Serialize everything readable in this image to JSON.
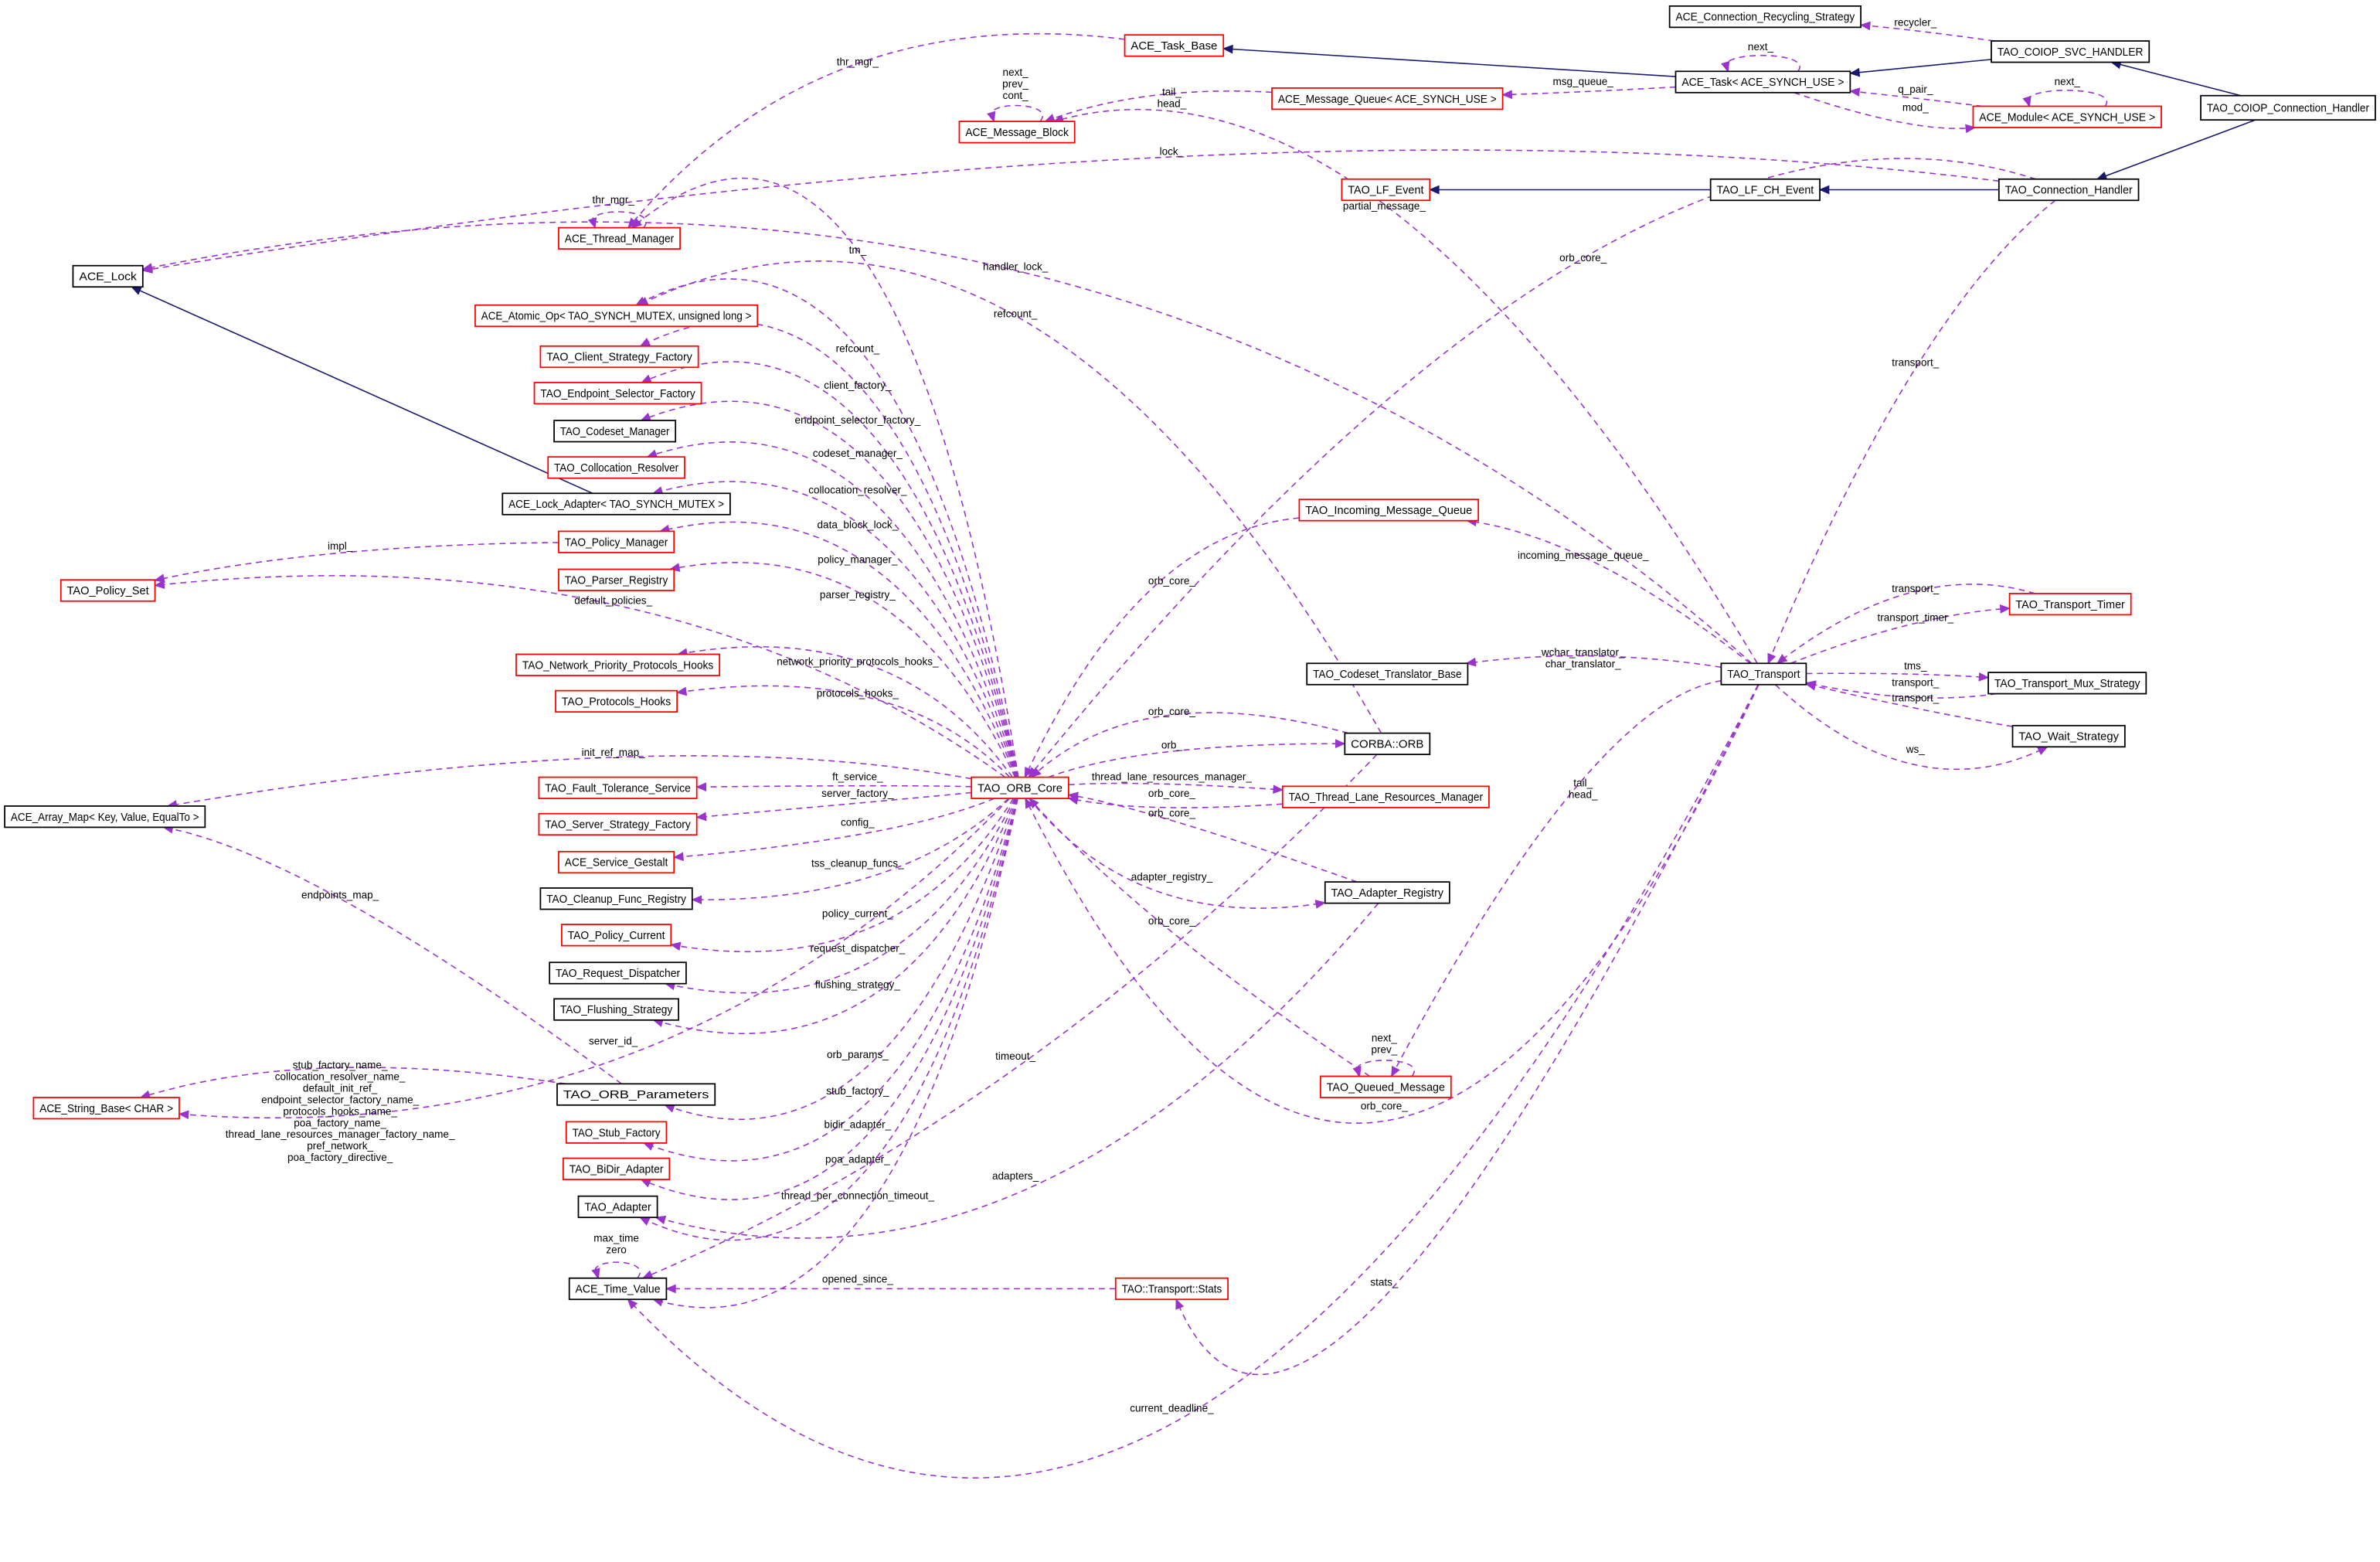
{
  "colors": {
    "inheritance": "#191970",
    "usage": "#9a32cd",
    "red_border": "#ff0000",
    "black_border": "#000000",
    "focus_fill": "#bfbfbf"
  },
  "nodes": [
    {
      "id": "recycling",
      "label": "ACE_Connection_Recycling_Strategy",
      "border": "black"
    },
    {
      "id": "svc",
      "label": "TAO_COIOP_SVC_HANDLER",
      "border": "black"
    },
    {
      "id": "coiop",
      "label": "TAO_COIOP_Connection_Handler",
      "border": "focus"
    },
    {
      "id": "taskbase",
      "label": "ACE_Task_Base",
      "border": "red"
    },
    {
      "id": "task",
      "label": "ACE_Task< ACE_SYNCH_USE >",
      "border": "black"
    },
    {
      "id": "msgqueue",
      "label": "ACE_Message_Queue< ACE_SYNCH_USE >",
      "border": "red"
    },
    {
      "id": "module",
      "label": "ACE_Module< ACE_SYNCH_USE >",
      "border": "red"
    },
    {
      "id": "msgblock",
      "label": "ACE_Message_Block",
      "border": "red"
    },
    {
      "id": "lfevent",
      "label": "TAO_LF_Event",
      "border": "red"
    },
    {
      "id": "lfch",
      "label": "TAO_LF_CH_Event",
      "border": "black"
    },
    {
      "id": "connh",
      "label": "TAO_Connection_Handler",
      "border": "black"
    },
    {
      "id": "thrmgr",
      "label": "ACE_Thread_Manager",
      "border": "red"
    },
    {
      "id": "lock",
      "label": "ACE_Lock",
      "border": "black"
    },
    {
      "id": "atomic",
      "label": "ACE_Atomic_Op< TAO_SYNCH_MUTEX, unsigned long >",
      "border": "red"
    },
    {
      "id": "clientsf",
      "label": "TAO_Client_Strategy_Factory",
      "border": "red"
    },
    {
      "id": "endpointsf",
      "label": "TAO_Endpoint_Selector_Factory",
      "border": "red"
    },
    {
      "id": "codesetmgr",
      "label": "TAO_Codeset_Manager",
      "border": "black"
    },
    {
      "id": "colloc",
      "label": "TAO_Collocation_Resolver",
      "border": "red"
    },
    {
      "id": "lockadapter",
      "label": "ACE_Lock_Adapter< TAO_SYNCH_MUTEX >",
      "border": "black"
    },
    {
      "id": "policymgr",
      "label": "TAO_Policy_Manager",
      "border": "red"
    },
    {
      "id": "policyset",
      "label": "TAO_Policy_Set",
      "border": "red"
    },
    {
      "id": "parserreg",
      "label": "TAO_Parser_Registry",
      "border": "red"
    },
    {
      "id": "netprio",
      "label": "TAO_Network_Priority_Protocols_Hooks",
      "border": "red"
    },
    {
      "id": "protohooks",
      "label": "TAO_Protocols_Hooks",
      "border": "red"
    },
    {
      "id": "arraymap",
      "label": "ACE_Array_Map< Key, Value, EqualTo >",
      "border": "black"
    },
    {
      "id": "ft",
      "label": "TAO_Fault_Tolerance_Service",
      "border": "red"
    },
    {
      "id": "serversf",
      "label": "TAO_Server_Strategy_Factory",
      "border": "red"
    },
    {
      "id": "gestalt",
      "label": "ACE_Service_Gestalt",
      "border": "red"
    },
    {
      "id": "cleanup",
      "label": "TAO_Cleanup_Func_Registry",
      "border": "black"
    },
    {
      "id": "policycur",
      "label": "TAO_Policy_Current",
      "border": "red"
    },
    {
      "id": "reqdisp",
      "label": "TAO_Request_Dispatcher",
      "border": "black"
    },
    {
      "id": "flushing",
      "label": "TAO_Flushing_Strategy",
      "border": "black"
    },
    {
      "id": "orbparams",
      "label": "TAO_ORB_Parameters",
      "border": "black"
    },
    {
      "id": "stringbase",
      "label": "ACE_String_Base< CHAR >",
      "border": "red"
    },
    {
      "id": "stubf",
      "label": "TAO_Stub_Factory",
      "border": "red"
    },
    {
      "id": "bidir",
      "label": "TAO_BiDir_Adapter",
      "border": "red"
    },
    {
      "id": "adapter",
      "label": "TAO_Adapter",
      "border": "black"
    },
    {
      "id": "timevalue",
      "label": "ACE_Time_Value",
      "border": "black"
    },
    {
      "id": "orbcore",
      "label": "TAO_ORB_Core",
      "border": "red"
    },
    {
      "id": "orb",
      "label": "CORBA::ORB",
      "border": "black"
    },
    {
      "id": "threadlane",
      "label": "TAO_Thread_Lane_Resources_Manager",
      "border": "red"
    },
    {
      "id": "adapterreg",
      "label": "TAO_Adapter_Registry",
      "border": "black"
    },
    {
      "id": "queued",
      "label": "TAO_Queued_Message",
      "border": "red"
    },
    {
      "id": "stats",
      "label": "TAO::Transport::Stats",
      "border": "red"
    },
    {
      "id": "incoming",
      "label": "TAO_Incoming_Message_Queue",
      "border": "red"
    },
    {
      "id": "codesettrans",
      "label": "TAO_Codeset_Translator_Base",
      "border": "black"
    },
    {
      "id": "transport",
      "label": "TAO_Transport",
      "border": "black"
    },
    {
      "id": "timer",
      "label": "TAO_Transport_Timer",
      "border": "red"
    },
    {
      "id": "mux",
      "label": "TAO_Transport_Mux_Strategy",
      "border": "black"
    },
    {
      "id": "wait",
      "label": "TAO_Wait_Strategy",
      "border": "black"
    }
  ],
  "edges": [
    {
      "from": "coiop",
      "to": "svc",
      "kind": "inheritance",
      "label": ""
    },
    {
      "from": "coiop",
      "to": "connh",
      "kind": "inheritance",
      "label": ""
    },
    {
      "from": "svc",
      "to": "task",
      "kind": "inheritance",
      "label": ""
    },
    {
      "from": "task",
      "to": "taskbase",
      "kind": "inheritance",
      "label": ""
    },
    {
      "from": "connh",
      "to": "lfch",
      "kind": "inheritance",
      "label": ""
    },
    {
      "from": "lfch",
      "to": "lfevent",
      "kind": "inheritance",
      "label": ""
    },
    {
      "from": "lockadapter",
      "to": "lock",
      "kind": "inheritance",
      "label": ""
    },
    {
      "from": "svc",
      "to": "recycling",
      "kind": "usage",
      "label": "recycler_"
    },
    {
      "from": "task",
      "to": "task",
      "kind": "usage",
      "label": "next_"
    },
    {
      "from": "task",
      "to": "msgqueue",
      "kind": "usage",
      "label": "msg_queue_"
    },
    {
      "from": "module",
      "to": "task",
      "kind": "usage",
      "label": "q_pair_"
    },
    {
      "from": "task",
      "to": "module",
      "kind": "usage",
      "label": "mod_"
    },
    {
      "from": "module",
      "to": "module",
      "kind": "usage",
      "label": "next_"
    },
    {
      "from": "msgqueue",
      "to": "msgblock",
      "kind": "usage",
      "label": "tail_\nhead_"
    },
    {
      "from": "msgblock",
      "to": "msgblock",
      "kind": "usage",
      "label": "next_\nprev_\ncont_"
    },
    {
      "from": "taskbase",
      "to": "thrmgr",
      "kind": "usage",
      "label": "thr_mgr_"
    },
    {
      "from": "thrmgr",
      "to": "thrmgr",
      "kind": "usage",
      "label": "thr_mgr_"
    },
    {
      "from": "connh",
      "to": "lock",
      "kind": "usage",
      "label": "lock_"
    },
    {
      "from": "transport",
      "to": "msgblock",
      "kind": "usage",
      "label": "partial_message_"
    },
    {
      "from": "connh",
      "to": "orbcore",
      "kind": "usage",
      "label": "orb_core_"
    },
    {
      "from": "connh",
      "to": "transport",
      "kind": "usage",
      "label": "transport_"
    },
    {
      "from": "orbcore",
      "to": "thrmgr",
      "kind": "usage",
      "label": "tm_"
    },
    {
      "from": "transport",
      "to": "lock",
      "kind": "usage",
      "label": "handler_lock_"
    },
    {
      "from": "orb",
      "to": "atomic",
      "kind": "usage",
      "label": "refcount_"
    },
    {
      "from": "orbcore",
      "to": "atomic",
      "kind": "usage",
      "label": "refcount_"
    },
    {
      "from": "orbcore",
      "to": "clientsf",
      "kind": "usage",
      "label": "client_factory_"
    },
    {
      "from": "orbcore",
      "to": "endpointsf",
      "kind": "usage",
      "label": "endpoint_selector_factory_"
    },
    {
      "from": "orbcore",
      "to": "codesetmgr",
      "kind": "usage",
      "label": "codeset_manager_"
    },
    {
      "from": "orbcore",
      "to": "colloc",
      "kind": "usage",
      "label": "collocation_resolver_"
    },
    {
      "from": "orbcore",
      "to": "lockadapter",
      "kind": "usage",
      "label": "data_block_lock_"
    },
    {
      "from": "orbcore",
      "to": "policymgr",
      "kind": "usage",
      "label": "policy_manager_"
    },
    {
      "from": "policymgr",
      "to": "policyset",
      "kind": "usage",
      "label": "impl_"
    },
    {
      "from": "orbcore",
      "to": "parserreg",
      "kind": "usage",
      "label": "parser_registry_"
    },
    {
      "from": "orbcore",
      "to": "policyset",
      "kind": "usage",
      "label": "default_policies_"
    },
    {
      "from": "orbcore",
      "to": "netprio",
      "kind": "usage",
      "label": "network_priority_protocols_hooks_"
    },
    {
      "from": "orbcore",
      "to": "protohooks",
      "kind": "usage",
      "label": "protocols_hooks_"
    },
    {
      "from": "orbcore",
      "to": "arraymap",
      "kind": "usage",
      "label": "init_ref_map_"
    },
    {
      "from": "orbcore",
      "to": "ft",
      "kind": "usage",
      "label": "ft_service_"
    },
    {
      "from": "orbcore",
      "to": "serversf",
      "kind": "usage",
      "label": "server_factory_"
    },
    {
      "from": "orbcore",
      "to": "gestalt",
      "kind": "usage",
      "label": "config_"
    },
    {
      "from": "orbcore",
      "to": "cleanup",
      "kind": "usage",
      "label": "tss_cleanup_funcs_"
    },
    {
      "from": "orbcore",
      "to": "policycur",
      "kind": "usage",
      "label": "policy_current_"
    },
    {
      "from": "orbcore",
      "to": "reqdisp",
      "kind": "usage",
      "label": "request_dispatcher_"
    },
    {
      "from": "orbcore",
      "to": "flushing",
      "kind": "usage",
      "label": "flushing_strategy_"
    },
    {
      "from": "orbcore",
      "to": "stringbase",
      "kind": "usage",
      "label": "server_id_"
    },
    {
      "from": "orbcore",
      "to": "orbparams",
      "kind": "usage",
      "label": "orb_params_"
    },
    {
      "from": "orbparams",
      "to": "arraymap",
      "kind": "usage",
      "label": "endpoints_map_"
    },
    {
      "from": "orbparams",
      "to": "stringbase",
      "kind": "usage",
      "label": "stub_factory_name_\ncollocation_resolver_name_\ndefault_init_ref_\nendpoint_selector_factory_name_\nprotocols_hooks_name_\npoa_factory_name_\nthread_lane_resources_manager_factory_name_\npref_network_\npoa_factory_directive_"
    },
    {
      "from": "orbcore",
      "to": "stubf",
      "kind": "usage",
      "label": "stub_factory_"
    },
    {
      "from": "orbcore",
      "to": "bidir",
      "kind": "usage",
      "label": "bidir_adapter_"
    },
    {
      "from": "orbcore",
      "to": "adapter",
      "kind": "usage",
      "label": "poa_adapter_"
    },
    {
      "from": "orbcore",
      "to": "timevalue",
      "kind": "usage",
      "label": "thread_per_connection_timeout_"
    },
    {
      "from": "orb",
      "to": "timevalue",
      "kind": "usage",
      "label": "timeout_"
    },
    {
      "from": "adapterreg",
      "to": "adapter",
      "kind": "usage",
      "label": "adapters_"
    },
    {
      "from": "timevalue",
      "to": "timevalue",
      "kind": "usage",
      "label": "max_time\nzero"
    },
    {
      "from": "stats",
      "to": "timevalue",
      "kind": "usage",
      "label": "opened_since_"
    },
    {
      "from": "transport",
      "to": "stats",
      "kind": "usage",
      "label": "stats_"
    },
    {
      "from": "transport",
      "to": "timevalue",
      "kind": "usage",
      "label": "current_deadline_"
    },
    {
      "from": "incoming",
      "to": "orbcore",
      "kind": "usage",
      "label": "orb_core_"
    },
    {
      "from": "orb",
      "to": "orbcore",
      "kind": "usage",
      "label": "orb_core_"
    },
    {
      "from": "orbcore",
      "to": "orb",
      "kind": "usage",
      "label": "orb_"
    },
    {
      "from": "orbcore",
      "to": "threadlane",
      "kind": "usage",
      "label": "thread_lane_resources_manager_"
    },
    {
      "from": "threadlane",
      "to": "orbcore",
      "kind": "usage",
      "label": "orb_core_"
    },
    {
      "from": "adapterreg",
      "to": "orbcore",
      "kind": "usage",
      "label": "orb_core_"
    },
    {
      "from": "orbcore",
      "to": "adapterreg",
      "kind": "usage",
      "label": "adapter_registry_"
    },
    {
      "from": "queued",
      "to": "orbcore",
      "kind": "usage",
      "label": "orb_core_"
    },
    {
      "from": "transport",
      "to": "orbcore",
      "kind": "usage",
      "label": "orb_core_"
    },
    {
      "from": "transport",
      "to": "incoming",
      "kind": "usage",
      "label": "incoming_message_queue_"
    },
    {
      "from": "transport",
      "to": "codesettrans",
      "kind": "usage",
      "label": "wchar_translator_\nchar_translator_"
    },
    {
      "from": "timer",
      "to": "transport",
      "kind": "usage",
      "label": "transport_"
    },
    {
      "from": "transport",
      "to": "timer",
      "kind": "usage",
      "label": "transport_timer_"
    },
    {
      "from": "transport",
      "to": "mux",
      "kind": "usage",
      "label": "tms_"
    },
    {
      "from": "mux",
      "to": "transport",
      "kind": "usage",
      "label": "transport_"
    },
    {
      "from": "wait",
      "to": "transport",
      "kind": "usage",
      "label": "transport_"
    },
    {
      "from": "transport",
      "to": "wait",
      "kind": "usage",
      "label": "ws_"
    },
    {
      "from": "transport",
      "to": "queued",
      "kind": "usage",
      "label": "tail_\nhead_"
    },
    {
      "from": "queued",
      "to": "queued",
      "kind": "usage",
      "label": "next_\nprev_"
    }
  ]
}
